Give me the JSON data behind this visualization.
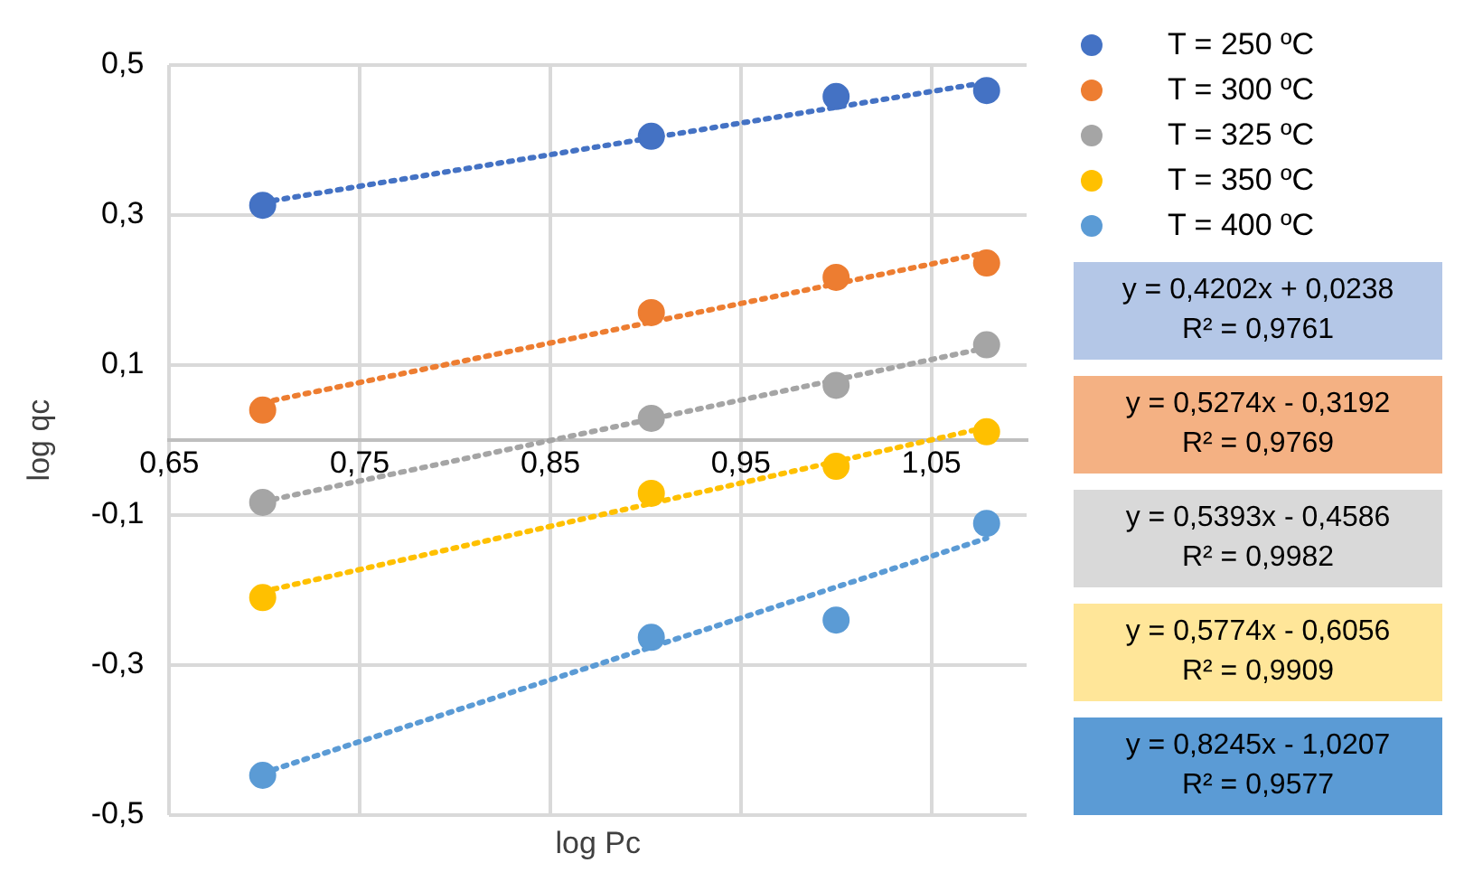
{
  "chart_data": {
    "type": "scatter",
    "xlabel": "log Pc",
    "ylabel": "log qc",
    "xlim": [
      0.65,
      1.1
    ],
    "xticks": [
      {
        "value": 0.65,
        "label": "0,65"
      },
      {
        "value": 0.75,
        "label": "0,75"
      },
      {
        "value": 0.85,
        "label": "0,85"
      },
      {
        "value": 0.95,
        "label": "0,95"
      },
      {
        "value": 1.05,
        "label": "1,05"
      }
    ],
    "ylim": [
      -0.5,
      0.5
    ],
    "yticks": [
      {
        "value": -0.5,
        "label": "-0,5"
      },
      {
        "value": -0.3,
        "label": "-0,3"
      },
      {
        "value": -0.1,
        "label": "-0,1"
      },
      {
        "value": 0.1,
        "label": "0,1"
      },
      {
        "value": 0.3,
        "label": "0,3"
      },
      {
        "value": 0.5,
        "label": "0,5"
      }
    ],
    "grid": true,
    "legend": "right",
    "marker": "circle",
    "series": [
      {
        "name": "T = 250 ºC",
        "color": "#4472c4",
        "x": [
          0.699,
          0.903,
          1.0,
          1.079
        ],
        "values": [
          0.313,
          0.405,
          0.458,
          0.466
        ]
      },
      {
        "name": "T = 300 ºC",
        "color": "#ed7d31",
        "x": [
          0.699,
          0.903,
          1.0,
          1.079
        ],
        "values": [
          0.04,
          0.17,
          0.217,
          0.236
        ]
      },
      {
        "name": "T = 325 ºC",
        "color": "#a5a5a5",
        "x": [
          0.699,
          0.903,
          1.0,
          1.079
        ],
        "values": [
          -0.083,
          0.029,
          0.073,
          0.127
        ]
      },
      {
        "name": "T = 350 ºC",
        "color": "#ffc000",
        "x": [
          0.699,
          0.903,
          1.0,
          1.079
        ],
        "values": [
          -0.21,
          -0.071,
          -0.035,
          0.011
        ]
      },
      {
        "name": "T = 400 ºC",
        "color": "#5b9bd5",
        "x": [
          0.699,
          0.903,
          1.0,
          1.079
        ],
        "values": [
          -0.447,
          -0.263,
          -0.24,
          -0.111
        ]
      },
      {
        "type": "line",
        "color": "#4472c4",
        "line_style": "dotted",
        "marker": "none",
        "x": [
          0.699,
          1.079
        ],
        "values": [
          0.317,
          0.477
        ]
      },
      {
        "type": "line",
        "color": "#ed7d31",
        "line_style": "dotted",
        "marker": "none",
        "x": [
          0.699,
          1.079
        ],
        "values": [
          0.05,
          0.25
        ]
      },
      {
        "type": "line",
        "color": "#a5a5a5",
        "line_style": "dotted",
        "marker": "none",
        "x": [
          0.699,
          1.079
        ],
        "values": [
          -0.082,
          0.123
        ]
      },
      {
        "type": "line",
        "color": "#ffc000",
        "line_style": "dotted",
        "marker": "none",
        "x": [
          0.699,
          1.079
        ],
        "values": [
          -0.202,
          0.017
        ]
      },
      {
        "type": "line",
        "color": "#5b9bd5",
        "line_style": "dotted",
        "marker": "none",
        "x": [
          0.699,
          1.079
        ],
        "values": [
          -0.444,
          -0.131
        ]
      }
    ],
    "annotations": [
      "y = 0,4202x + 0,0238",
      "R² = 0,9761",
      "y = 0,5274x - 0,3192",
      "R² = 0,9769",
      "y = 0,5393x - 0,4586",
      "R² = 0,9982",
      "y = 0,5774x - 0,6056",
      "R² = 0,9909",
      "y = 0,8245x - 1,0207",
      "R² = 0,9577"
    ]
  }
}
